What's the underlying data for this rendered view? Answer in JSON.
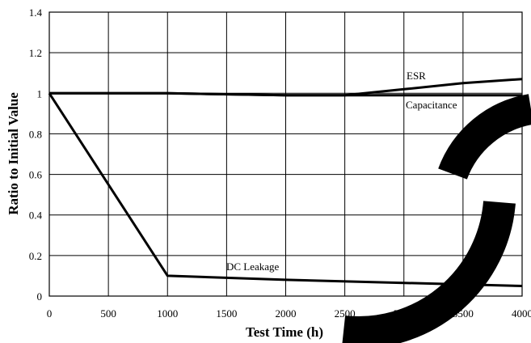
{
  "chart_data": {
    "type": "line",
    "title": "",
    "xlabel": "Test Time (h)",
    "ylabel": "Ratio to Initial Value",
    "xlim": [
      0,
      4000
    ],
    "ylim": [
      0,
      1.4
    ],
    "x_ticks": [
      "0",
      "500",
      "1000",
      "1500",
      "2000",
      "2500",
      "3000",
      "3500",
      "4000"
    ],
    "y_ticks": [
      "0",
      "0.2",
      "0.4",
      "0.6",
      "0.8",
      "1",
      "1.2",
      "1.4"
    ],
    "grid": true,
    "series": [
      {
        "name": "ESR",
        "x": [
          0,
          1000,
          2000,
          2500,
          3000,
          3500,
          4000
        ],
        "y": [
          1.0,
          1.0,
          0.99,
          0.99,
          1.02,
          1.05,
          1.07
        ]
      },
      {
        "name": "Capacitance",
        "x": [
          0,
          1000,
          2000,
          3000,
          4000
        ],
        "y": [
          1.0,
          1.0,
          0.99,
          0.99,
          0.99
        ]
      },
      {
        "name": "DC Leakage",
        "x": [
          0,
          1000,
          2000,
          3000,
          4000
        ],
        "y": [
          1.0,
          0.1,
          0.08,
          0.065,
          0.05
        ]
      }
    ],
    "watermark_color": "#000000"
  }
}
